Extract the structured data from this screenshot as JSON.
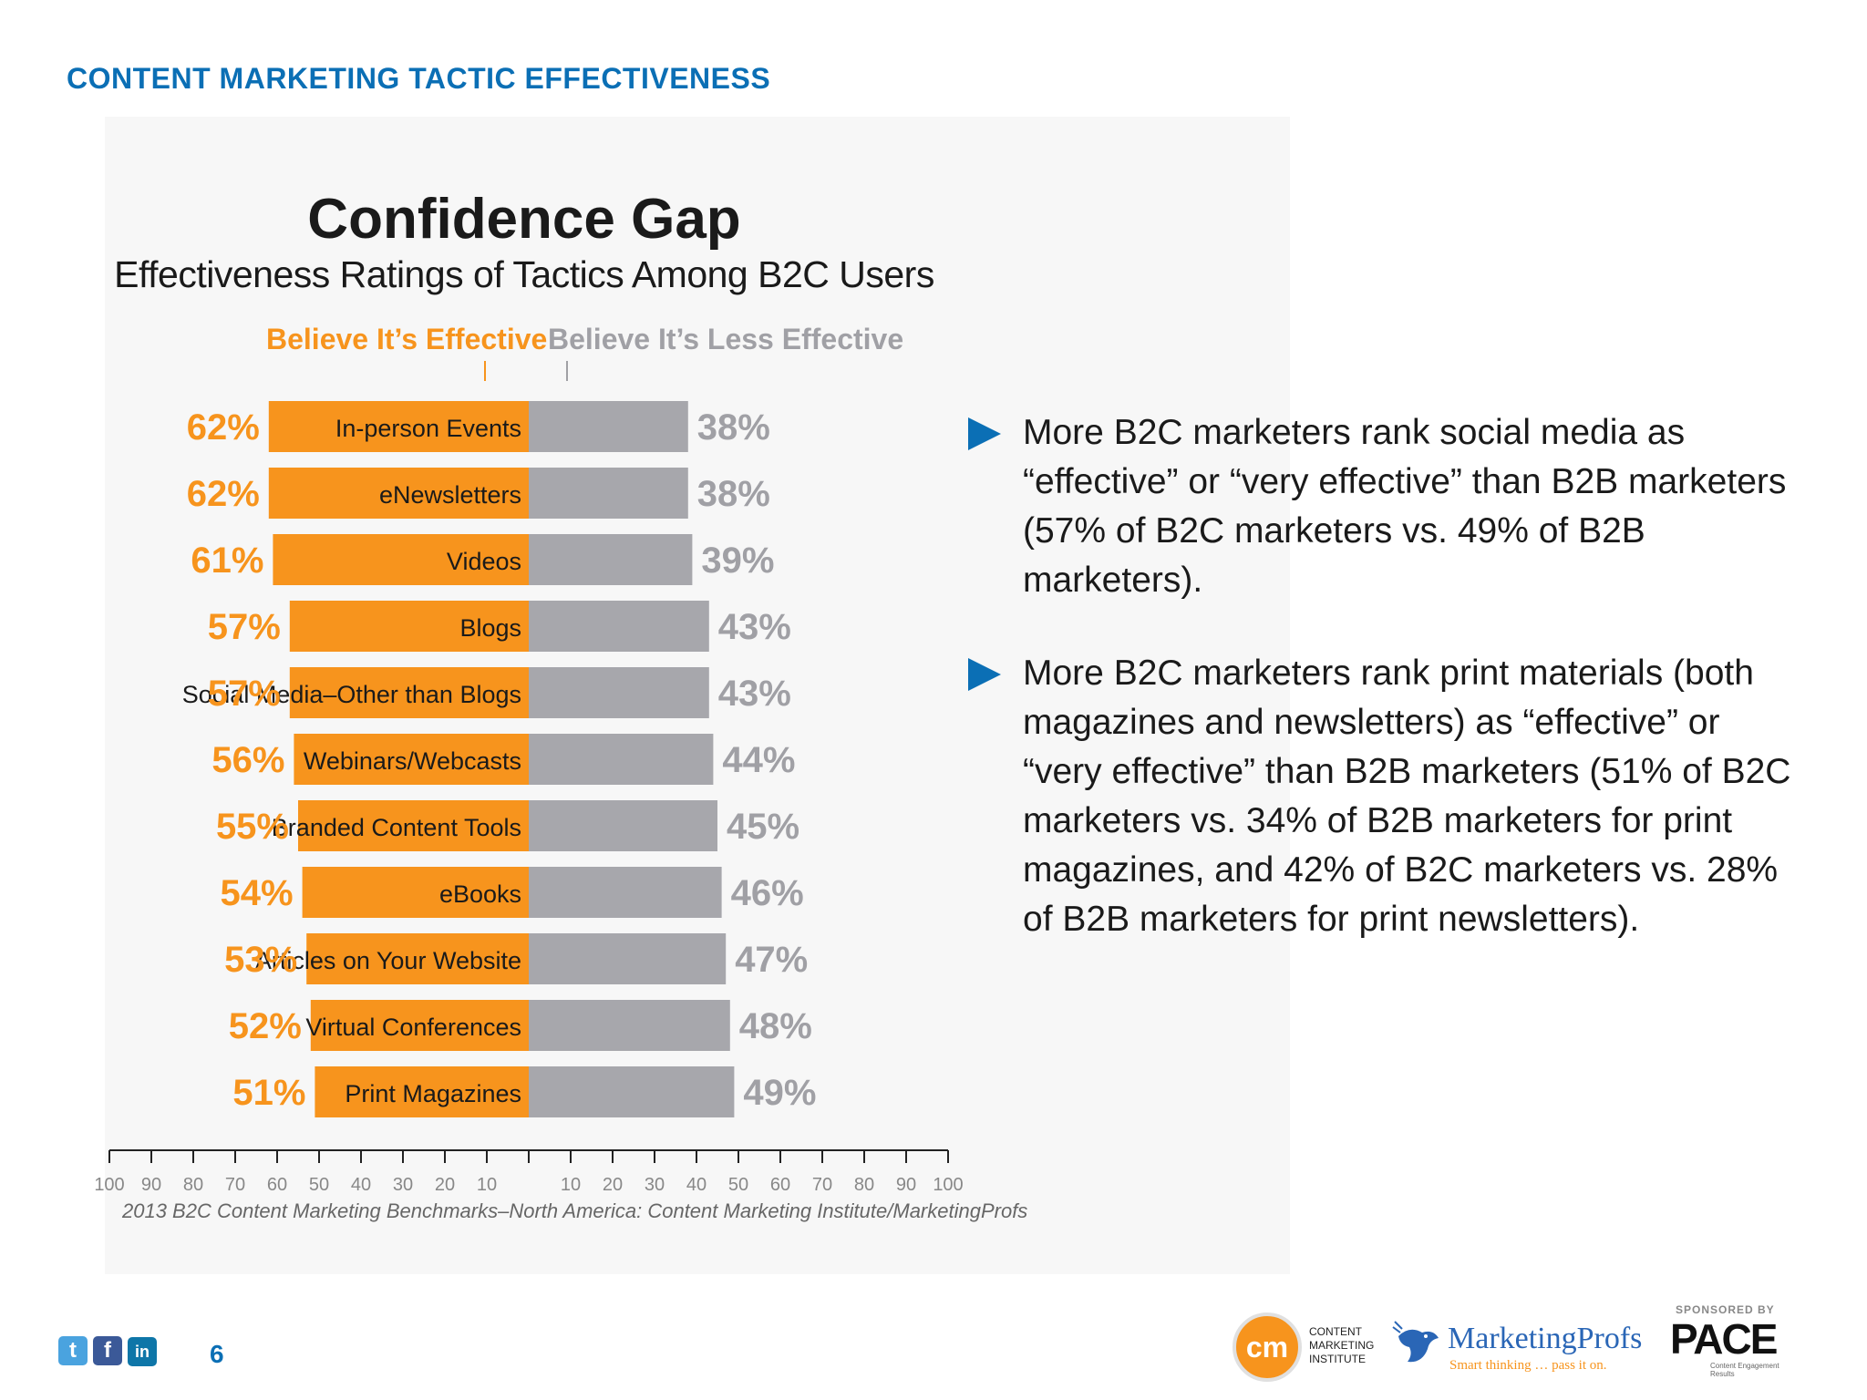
{
  "header": {
    "title": "CONTENT MARKETING TACTIC EFFECTIVENESS"
  },
  "chart_data": {
    "type": "bar",
    "title": "Confidence Gap",
    "subtitle": "Effectiveness Ratings of Tactics Among B2C Users",
    "categories": [
      "In-person Events",
      "eNewsletters",
      "Videos",
      "Blogs",
      "Social Media–Other than Blogs",
      "Webinars/Webcasts",
      "Branded Content Tools",
      "eBooks",
      "Articles on Your Website",
      "Virtual Conferences",
      "Print Magazines"
    ],
    "series": [
      {
        "name": "Believe It’s Effective",
        "values": [
          62,
          62,
          61,
          57,
          57,
          56,
          55,
          54,
          53,
          52,
          51
        ],
        "color": "#f7941d"
      },
      {
        "name": "Believe It’s Less Effective",
        "values": [
          38,
          38,
          39,
          43,
          43,
          44,
          45,
          46,
          47,
          48,
          49
        ],
        "color": "#a7a7ac"
      }
    ],
    "axis_ticks_left": [
      100,
      90,
      80,
      70,
      60,
      50,
      40,
      30,
      20,
      10
    ],
    "axis_ticks_right": [
      10,
      20,
      30,
      40,
      50,
      60,
      70,
      80,
      90,
      100
    ],
    "xlim": [
      -100,
      100
    ],
    "legend_position": "top",
    "grid": false,
    "source": "2013 B2C Content Marketing Benchmarks–North America: Content Marketing Institute/MarketingProfs"
  },
  "bullets": [
    "More B2C marketers rank social media as “effective” or “very effective” than B2B marketers (57% of B2C marketers vs. 49% of B2B marketers).",
    "More B2C marketers rank print materials (both magazines and newsletters) as “effective” or “very effective” than B2B marketers (51% of B2C marketers vs. 34% of B2B marketers for print magazines, and 42% of B2C marketers vs. 28% of B2B marketers for print newsletters)."
  ],
  "footer": {
    "page_number": "6",
    "social_icons": [
      "twitter-icon",
      "facebook-icon",
      "linkedin-icon"
    ],
    "social_glyphs": [
      "t",
      "f",
      "in"
    ],
    "cmi_logo": "cm",
    "cmi_text": [
      "CONTENT",
      "MARKETING",
      "INSTITUTE"
    ],
    "mp_name": "MarketingProfs",
    "mp_tagline": "Smart thinking … pass it on.",
    "sponsored_by": "SPONSORED BY",
    "pace": "PACE",
    "pace_tagline": "Content Engagement Results"
  },
  "colors": {
    "accent_blue": "#0b6fb5",
    "orange": "#f7941d",
    "gray": "#a7a7ac",
    "gray_text": "#a0a0a5"
  }
}
